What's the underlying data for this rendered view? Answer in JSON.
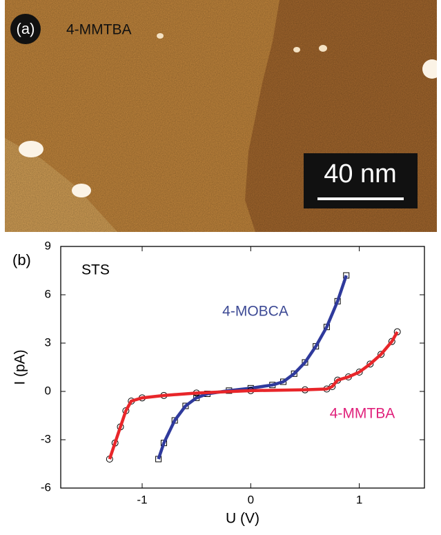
{
  "panel_a": {
    "label": "(a)",
    "title": "4-MMTBA",
    "scale_bar": "40 nm"
  },
  "chart_data": {
    "type": "line",
    "panel_label": "(b)",
    "annotation": "STS",
    "xlabel": "U (V)",
    "ylabel": "I (pA)",
    "xlim": [
      -1.75,
      1.6
    ],
    "ylim": [
      -6,
      9
    ],
    "xticks": [
      -1,
      0,
      1
    ],
    "yticks": [
      -6,
      -3,
      0,
      3,
      6,
      9
    ],
    "series": [
      {
        "name": "4-MOBCA",
        "color": "#2f3a9c",
        "label_color": "#3d4a95",
        "marker": "square",
        "x": [
          -0.85,
          -0.8,
          -0.7,
          -0.6,
          -0.5,
          -0.4,
          -0.2,
          0,
          0.2,
          0.3,
          0.4,
          0.5,
          0.6,
          0.7,
          0.8,
          0.88
        ],
        "values": [
          -4.2,
          -3.2,
          -1.8,
          -0.9,
          -0.4,
          -0.15,
          0.05,
          0.2,
          0.4,
          0.6,
          1.1,
          1.8,
          2.8,
          4.0,
          5.6,
          7.2
        ]
      },
      {
        "name": "4-MMTBA",
        "color": "#e8262a",
        "label_color": "#e0217b",
        "marker": "circle",
        "x": [
          -1.3,
          -1.25,
          -1.2,
          -1.15,
          -1.1,
          -1.0,
          -0.8,
          -0.5,
          0,
          0.5,
          0.7,
          0.75,
          0.8,
          0.9,
          1.0,
          1.1,
          1.2,
          1.3,
          1.35
        ],
        "values": [
          -4.2,
          -3.2,
          -2.2,
          -1.2,
          -0.6,
          -0.4,
          -0.25,
          -0.1,
          0.05,
          0.1,
          0.15,
          0.3,
          0.7,
          0.9,
          1.2,
          1.7,
          2.3,
          3.1,
          3.7
        ]
      }
    ]
  }
}
